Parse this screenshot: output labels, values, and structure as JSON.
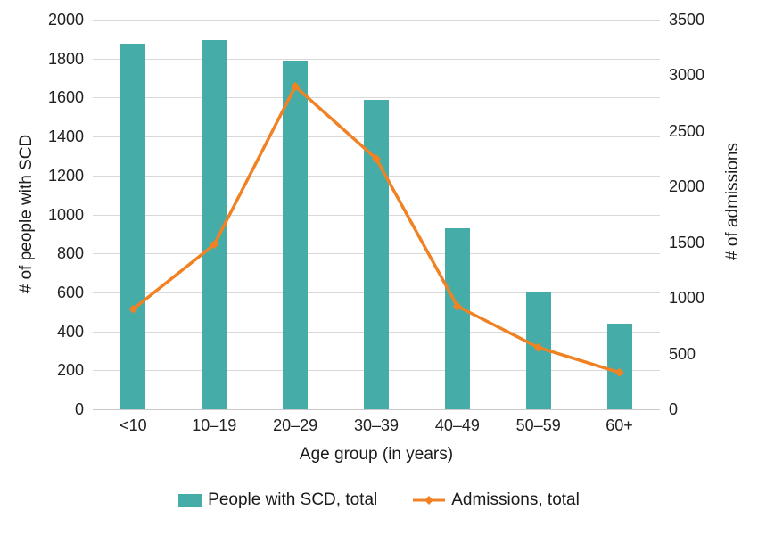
{
  "chart_data": {
    "type": "bar",
    "subtype": "combo-bar-line-dual-axis",
    "categories": [
      "<10",
      "10–19",
      "20–29",
      "30–39",
      "40–49",
      "50–59",
      "60+"
    ],
    "series": [
      {
        "name": "People with SCD, total",
        "type": "bar",
        "axis": "left",
        "color": "#46aca8",
        "values": [
          1875,
          1895,
          1790,
          1590,
          930,
          605,
          440
        ]
      },
      {
        "name": "Admissions, total",
        "type": "line",
        "axis": "right",
        "color": "#f08224",
        "marker": "diamond",
        "values": [
          900,
          1480,
          2900,
          2250,
          925,
          555,
          330
        ]
      }
    ],
    "xlabel": "Age group (in years)",
    "ylabel_left": "# of people with SCD",
    "ylabel_right": "# of admissions",
    "ylim_left": [
      0,
      2000
    ],
    "ylim_right": [
      0,
      3500
    ],
    "yticks_left": [
      "2000",
      "1800",
      "1600",
      "1400",
      "1200",
      "1000",
      "800",
      "600",
      "400",
      "200",
      "0"
    ],
    "yticks_right": [
      "3500",
      "3000",
      "2500",
      "2000",
      "1500",
      "1000",
      "500",
      "0"
    ],
    "grid": true,
    "gridline_color": "#d9d9d9",
    "legend_position": "bottom"
  }
}
